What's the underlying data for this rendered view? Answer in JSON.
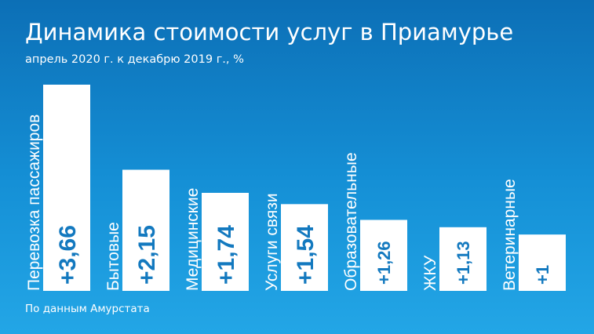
{
  "title": "Динамика стоимости услуг в Приамурье",
  "subtitle": "апрель 2020 г. к декабрю 2019 г., %",
  "source": "По данным Амурстата",
  "colors": {
    "bar": "#ffffff",
    "value_text": "#1379bf",
    "background_top": "#0c6fb6",
    "background_bottom": "#23a6e6"
  },
  "chart_data": {
    "type": "bar",
    "title": "Динамика стоимости услуг в Приамурье",
    "subtitle": "апрель 2020 г. к декабрю 2019 г., %",
    "categories": [
      "Перевозка пассажиров",
      "Бытовые",
      "Медицинские",
      "Услуги связи",
      "Образовательные",
      "ЖКУ",
      "Ветеринарные"
    ],
    "values": [
      3.66,
      2.15,
      1.74,
      1.54,
      1.26,
      1.13,
      1
    ],
    "value_labels": [
      "+3,66",
      "+2,15",
      "+1,74",
      "+1,54",
      "+1,26",
      "+1,13",
      "+1"
    ],
    "xlabel": "",
    "ylabel": "",
    "ylim": [
      0,
      3.66
    ],
    "grid": false,
    "legend": "none"
  }
}
